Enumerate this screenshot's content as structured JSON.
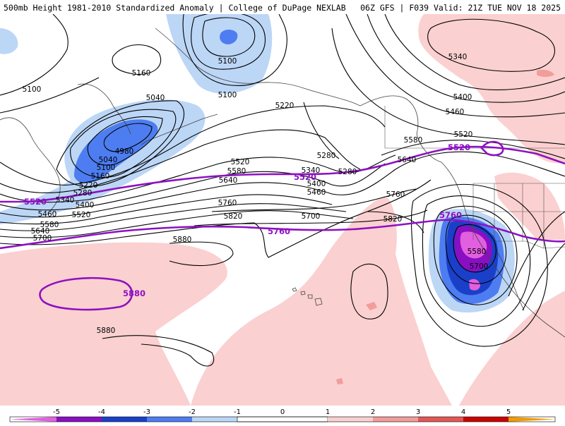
{
  "header": {
    "title_left": "500mb Height 1981-2010 Standardized Anomaly | College of DuPage NEXLAB",
    "title_right": "06Z GFS | F039 Valid: 21Z TUE NOV 18 2025"
  },
  "colors": {
    "anom_neg_5": "#e25fe0",
    "anom_neg_4": "#8a0ec2",
    "anom_neg_3": "#1a3fc9",
    "anom_neg_2": "#4d7df0",
    "anom_neg_1": "#bcd6f6",
    "anom_pos_1": "#fbd0d0",
    "anom_pos_2": "#f29c9c",
    "anom_pos_3": "#e35757",
    "anom_pos_4": "#cc0000",
    "anom_pos_5": "#f29a00",
    "contour": "#000000",
    "highlight_contour": "#8d11c2",
    "coastline": "#444444"
  },
  "colorbar": {
    "ticks": [
      "-5",
      "-4",
      "-3",
      "-2",
      "-1",
      "0",
      "1",
      "2",
      "3",
      "4",
      "5"
    ]
  },
  "contour_labels": [
    "5160",
    "5100",
    "5100",
    "5040",
    "5100",
    "5220",
    "5340",
    "5400",
    "5460",
    "5520",
    "5280",
    "4980",
    "5040",
    "5100",
    "5160",
    "5220",
    "5280",
    "5340",
    "5400",
    "5460",
    "5520",
    "5580",
    "5640",
    "5700",
    "5520",
    "5580",
    "5640",
    "5340",
    "5400",
    "5460",
    "5280",
    "5580",
    "5640",
    "5760",
    "5700",
    "5760",
    "5820",
    "5820",
    "5880",
    "5880",
    "5580",
    "5700"
  ],
  "highlight_labels": [
    "5520",
    "5520",
    "5520",
    "5760",
    "5760",
    "5880"
  ]
}
